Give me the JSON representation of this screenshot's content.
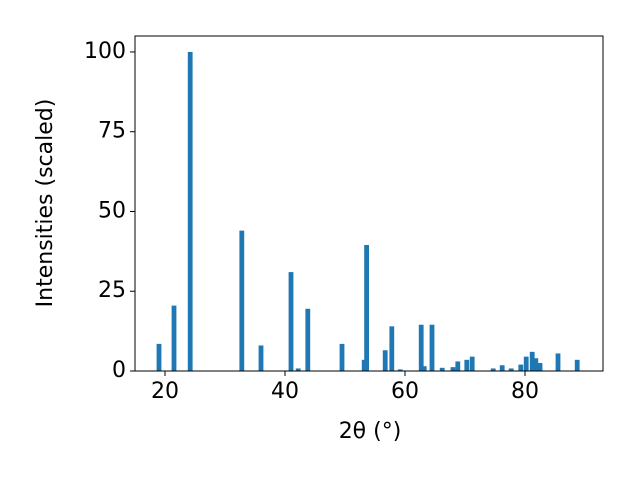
{
  "chart_data": {
    "type": "bar",
    "x_label": "2θ (°)",
    "y_label": "Intensities (scaled)",
    "x": [
      19.0,
      21.5,
      24.2,
      32.8,
      36.0,
      41.0,
      42.2,
      43.8,
      49.5,
      53.2,
      53.6,
      56.7,
      57.8,
      59.2,
      62.7,
      63.2,
      64.5,
      66.2,
      68.0,
      68.8,
      70.3,
      71.2,
      74.7,
      76.2,
      77.7,
      79.3,
      80.2,
      81.2,
      81.8,
      82.5,
      85.5,
      88.7
    ],
    "values": [
      8.5,
      20.5,
      100,
      44,
      8,
      31,
      0.8,
      19.5,
      8.5,
      3.5,
      39.5,
      6.5,
      14,
      0.5,
      14.5,
      1.5,
      14.5,
      1,
      1.2,
      3,
      3.5,
      4.5,
      0.8,
      1.8,
      0.8,
      2,
      4.5,
      6,
      4,
      2.5,
      5.5,
      3.5
    ],
    "color": "#1f77b4",
    "xlim": [
      15,
      93
    ],
    "xticks": [
      20,
      40,
      60,
      80
    ],
    "ylim": [
      0,
      105
    ],
    "yticks": [
      0,
      25,
      50,
      75,
      100
    ]
  }
}
